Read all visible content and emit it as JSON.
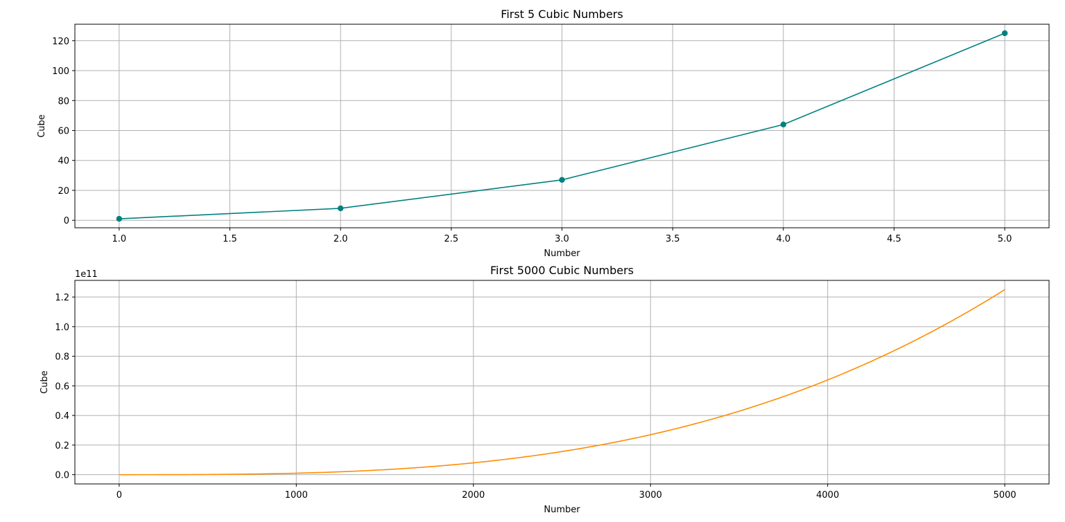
{
  "chart_data": [
    {
      "type": "line",
      "title": "First 5 Cubic Numbers",
      "xlabel": "Number",
      "ylabel": "Cube",
      "color": "#008080",
      "markers": true,
      "grid": true,
      "xlim": [
        0.8,
        5.2
      ],
      "ylim": [
        -5,
        131
      ],
      "xticks": [
        1.0,
        1.5,
        2.0,
        2.5,
        3.0,
        3.5,
        4.0,
        4.5,
        5.0
      ],
      "xtick_labels": [
        "1.0",
        "1.5",
        "2.0",
        "2.5",
        "3.0",
        "3.5",
        "4.0",
        "4.5",
        "5.0"
      ],
      "yticks": [
        0,
        20,
        40,
        60,
        80,
        100,
        120
      ],
      "ytick_labels": [
        "0",
        "20",
        "40",
        "60",
        "80",
        "100",
        "120"
      ],
      "x": [
        1,
        2,
        3,
        4,
        5
      ],
      "y": [
        1,
        8,
        27,
        64,
        125
      ]
    },
    {
      "type": "line",
      "title": "First 5000 Cubic Numbers",
      "xlabel": "Number",
      "ylabel": "Cube",
      "color": "#ff8c00",
      "markers": false,
      "grid": true,
      "y_offset_label": "1e11",
      "function": "y = x^3, x = 1..5000",
      "xlim": [
        -250,
        5250
      ],
      "ylim": [
        -6250000000.0,
        131250000000.0
      ],
      "xticks": [
        0,
        1000,
        2000,
        3000,
        4000,
        5000
      ],
      "xtick_labels": [
        "0",
        "1000",
        "2000",
        "3000",
        "4000",
        "5000"
      ],
      "yticks": [
        0,
        20000000000.0,
        40000000000.0,
        60000000000.0,
        80000000000.0,
        100000000000.0,
        120000000000.0
      ],
      "ytick_labels": [
        "0.0",
        "0.2",
        "0.4",
        "0.6",
        "0.8",
        "1.0",
        "1.2"
      ],
      "x": [
        1,
        250,
        500,
        750,
        1000,
        1250,
        1500,
        1750,
        2000,
        2250,
        2500,
        2750,
        3000,
        3250,
        3500,
        3750,
        4000,
        4250,
        4500,
        4750,
        5000
      ],
      "y": [
        1,
        15625000,
        125000000,
        421875000,
        1000000000,
        1953125000,
        3375000000,
        5359375000,
        8000000000,
        11390625000,
        15625000000,
        20796875000,
        27000000000,
        34328125000,
        42875000000,
        52734375000,
        64000000000,
        76765625000,
        91125000000,
        107171875000,
        125000000000
      ]
    }
  ]
}
